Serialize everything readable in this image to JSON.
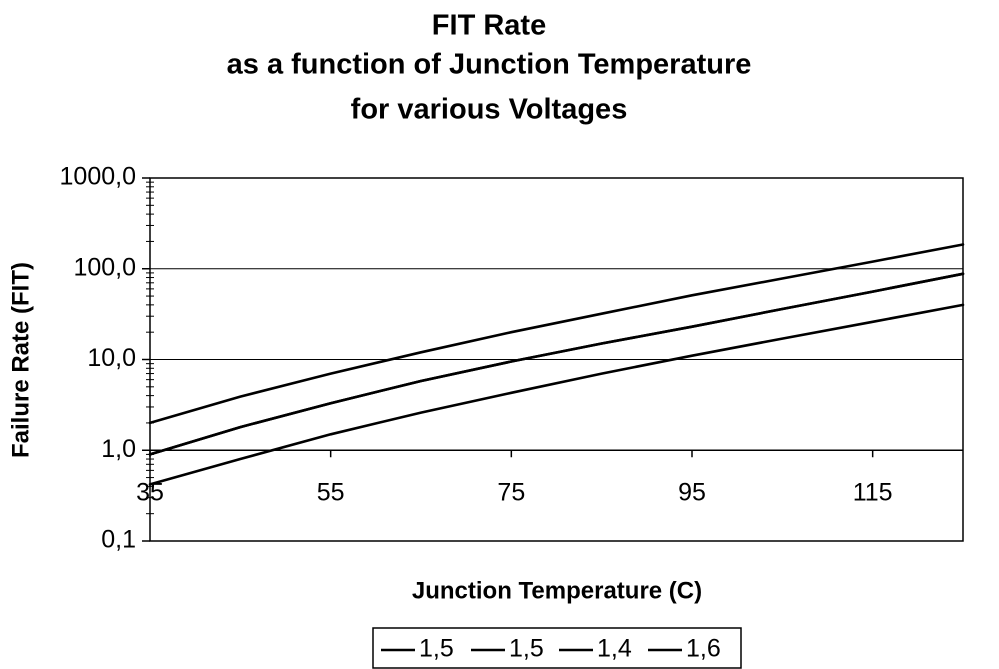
{
  "chart_data": {
    "type": "line",
    "title_lines": [
      "FIT Rate",
      "as a function of Junction Temperature",
      "for various  Voltages"
    ],
    "xlabel": "Junction Temperature (C)",
    "ylabel": "Failure Rate (FIT)",
    "y_scale": "log",
    "ylim": [
      0.1,
      1000
    ],
    "xlim": [
      35,
      125
    ],
    "x_ticks": [
      35,
      55,
      75,
      95,
      115
    ],
    "x_tick_labels": [
      "35",
      "55",
      "75",
      "95",
      "115"
    ],
    "y_ticks": [
      0.1,
      1,
      10,
      100,
      1000
    ],
    "y_tick_labels": [
      "0,1",
      "1,0",
      "10,0",
      "100,0",
      "1000,0"
    ],
    "grid": "horizontal major",
    "legend_position": "bottom",
    "series": [
      {
        "name": "1,5",
        "color": "#000000",
        "x": [
          35,
          45,
          55,
          65,
          75,
          85,
          95,
          105,
          115,
          125
        ],
        "values": [
          0.9,
          1.8,
          3.3,
          5.8,
          9.5,
          15,
          23,
          36,
          56,
          88
        ]
      },
      {
        "name": "1,5",
        "color": "#000000",
        "x": [
          35,
          45,
          55,
          65,
          75,
          85,
          95,
          105,
          115,
          125
        ],
        "values": [
          0.9,
          1.8,
          3.3,
          5.8,
          9.5,
          15,
          23,
          36,
          56,
          88
        ]
      },
      {
        "name": "1,4",
        "color": "#000000",
        "x": [
          35,
          45,
          55,
          65,
          75,
          85,
          95,
          105,
          115,
          125
        ],
        "values": [
          0.42,
          0.8,
          1.5,
          2.6,
          4.3,
          7,
          11,
          17,
          26,
          40
        ]
      },
      {
        "name": "1,6",
        "color": "#000000",
        "x": [
          35,
          45,
          55,
          65,
          75,
          85,
          95,
          105,
          115,
          125
        ],
        "values": [
          2,
          3.9,
          7,
          12,
          20,
          32,
          51,
          78,
          120,
          185
        ]
      }
    ]
  }
}
